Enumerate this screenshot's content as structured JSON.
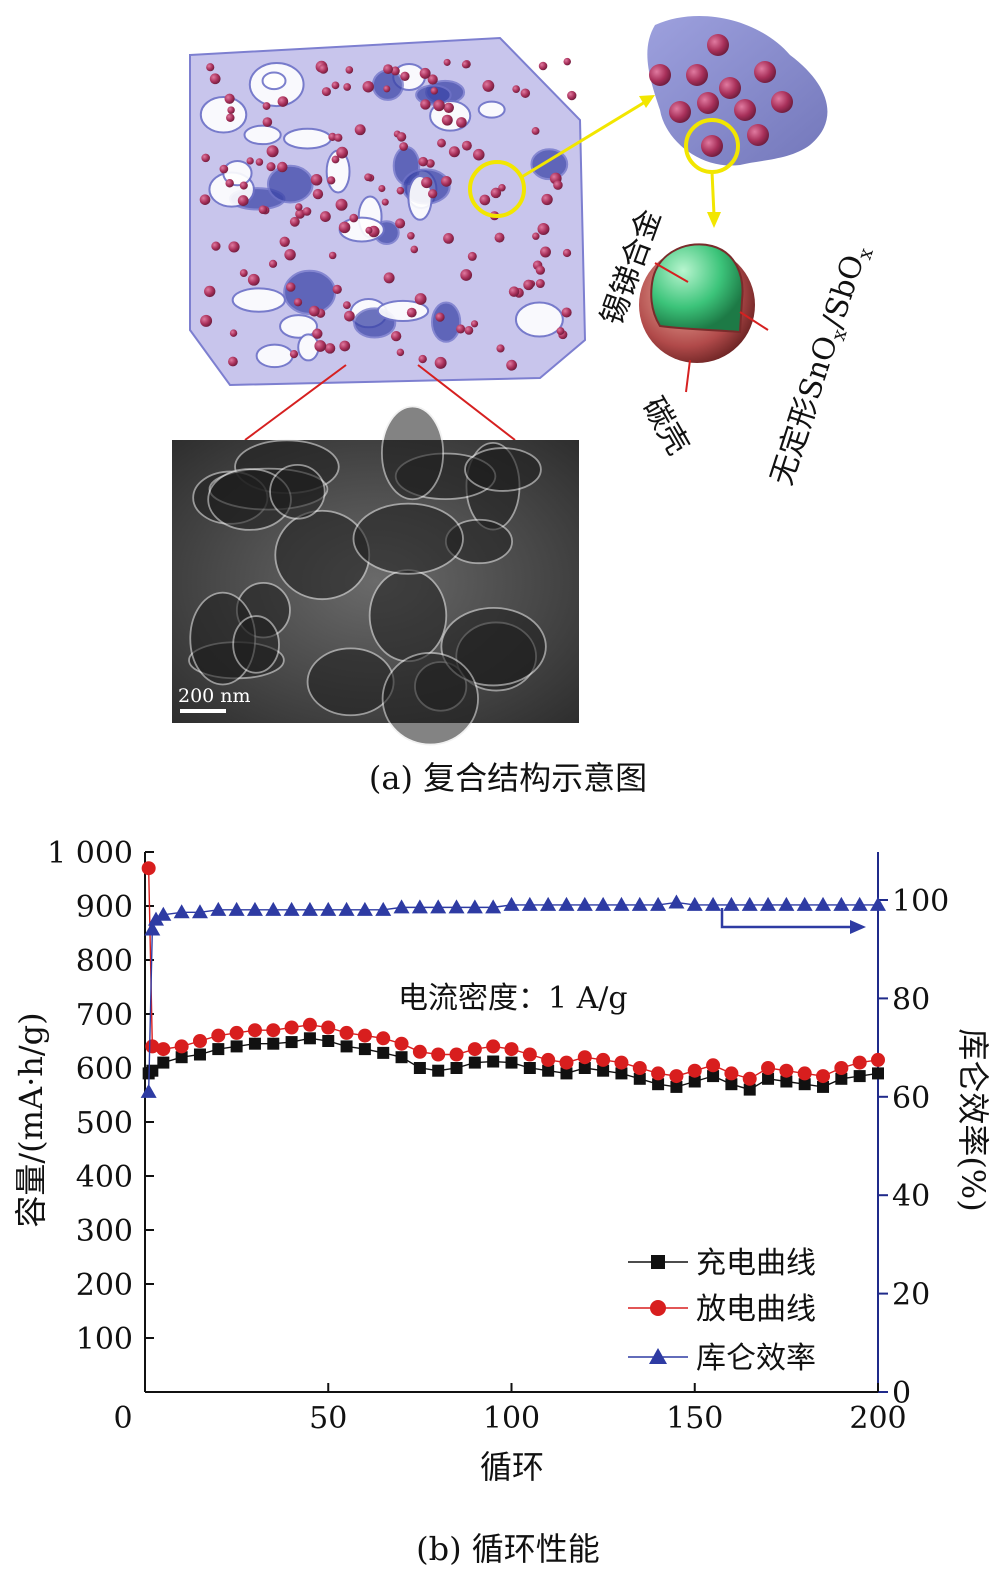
{
  "figure_a": {
    "caption": "(a) 复合结构示意图",
    "labels": {
      "alloy": "锡锑合金",
      "amorphous_prefix": "无定形SnO",
      "amorphous_mid": "/SbO",
      "subscript_x": "x",
      "carbon_shell": "碳壳"
    },
    "sem_scale_bar": "200 nm",
    "colors": {
      "highlight_circle": "#f2e600",
      "pointer_line": "#d62020",
      "particle": "#a8305a",
      "framework": "#6f73c8",
      "core": "#3cc47a"
    }
  },
  "figure_b": {
    "caption": "(b) 循环性能",
    "annotation": "电流密度：1 A/g",
    "y_left_ticks": [
      "1 000",
      "900",
      "800",
      "700",
      "600",
      "500",
      "400",
      "300",
      "200",
      "100"
    ],
    "y_right_ticks": [
      "100",
      "80",
      "60",
      "40",
      "20",
      "0"
    ],
    "x_ticks": [
      "0",
      "50",
      "100",
      "150",
      "200"
    ],
    "legend": [
      "充电曲线",
      "放电曲线",
      "库仑效率"
    ],
    "colors": {
      "charge": "#111111",
      "discharge": "#d81e1e",
      "efficiency": "#2e3ba3",
      "axis_right": "#1f2a8a"
    }
  },
  "chart_data": {
    "type": "scatter",
    "xlabel": "循环",
    "ylabel": "容量/(mA·h/g)",
    "y2label": "库仑效率(%)",
    "xlim": [
      0,
      200
    ],
    "ylim": [
      0,
      1000
    ],
    "y2lim": [
      0,
      110
    ],
    "legend_position": "bottom-right",
    "series": [
      {
        "name": "充电曲线",
        "axis": "left",
        "marker": "square",
        "x": [
          1,
          2,
          5,
          10,
          15,
          20,
          25,
          30,
          35,
          40,
          45,
          50,
          55,
          60,
          65,
          70,
          75,
          80,
          85,
          90,
          95,
          100,
          105,
          110,
          115,
          120,
          125,
          130,
          135,
          140,
          145,
          150,
          155,
          160,
          165,
          170,
          175,
          180,
          185,
          190,
          195,
          200
        ],
        "y": [
          590,
          595,
          610,
          620,
          625,
          635,
          640,
          645,
          645,
          648,
          655,
          650,
          640,
          635,
          628,
          620,
          600,
          595,
          600,
          610,
          612,
          610,
          600,
          595,
          590,
          600,
          595,
          590,
          580,
          570,
          565,
          575,
          585,
          570,
          560,
          580,
          575,
          570,
          565,
          580,
          585,
          590
        ]
      },
      {
        "name": "放电曲线",
        "axis": "left",
        "marker": "circle",
        "x": [
          1,
          2,
          5,
          10,
          15,
          20,
          25,
          30,
          35,
          40,
          45,
          50,
          55,
          60,
          65,
          70,
          75,
          80,
          85,
          90,
          95,
          100,
          105,
          110,
          115,
          120,
          125,
          130,
          135,
          140,
          145,
          150,
          155,
          160,
          165,
          170,
          175,
          180,
          185,
          190,
          195,
          200
        ],
        "y": [
          970,
          640,
          635,
          640,
          650,
          660,
          665,
          670,
          670,
          675,
          680,
          675,
          665,
          660,
          655,
          645,
          630,
          625,
          625,
          635,
          640,
          635,
          625,
          615,
          610,
          620,
          615,
          610,
          600,
          590,
          585,
          595,
          605,
          590,
          580,
          600,
          595,
          590,
          585,
          600,
          610,
          615
        ]
      },
      {
        "name": "库仑效率",
        "axis": "right",
        "marker": "triangle",
        "x": [
          1,
          2,
          3,
          5,
          10,
          15,
          20,
          25,
          30,
          35,
          40,
          45,
          50,
          55,
          60,
          65,
          70,
          75,
          80,
          85,
          90,
          95,
          100,
          105,
          110,
          115,
          120,
          125,
          130,
          135,
          140,
          145,
          150,
          155,
          160,
          165,
          170,
          175,
          180,
          185,
          190,
          195,
          200
        ],
        "y": [
          61,
          94,
          96,
          97,
          97.5,
          97.5,
          98,
          98,
          98,
          98,
          98,
          98,
          98,
          98,
          98,
          98,
          98.5,
          98.5,
          98.5,
          98.5,
          98.5,
          98.5,
          99,
          99,
          99,
          99,
          99,
          99,
          99,
          99,
          99,
          99.5,
          99,
          99,
          99,
          99,
          99,
          99,
          99,
          99,
          99,
          99,
          99
        ]
      }
    ]
  }
}
